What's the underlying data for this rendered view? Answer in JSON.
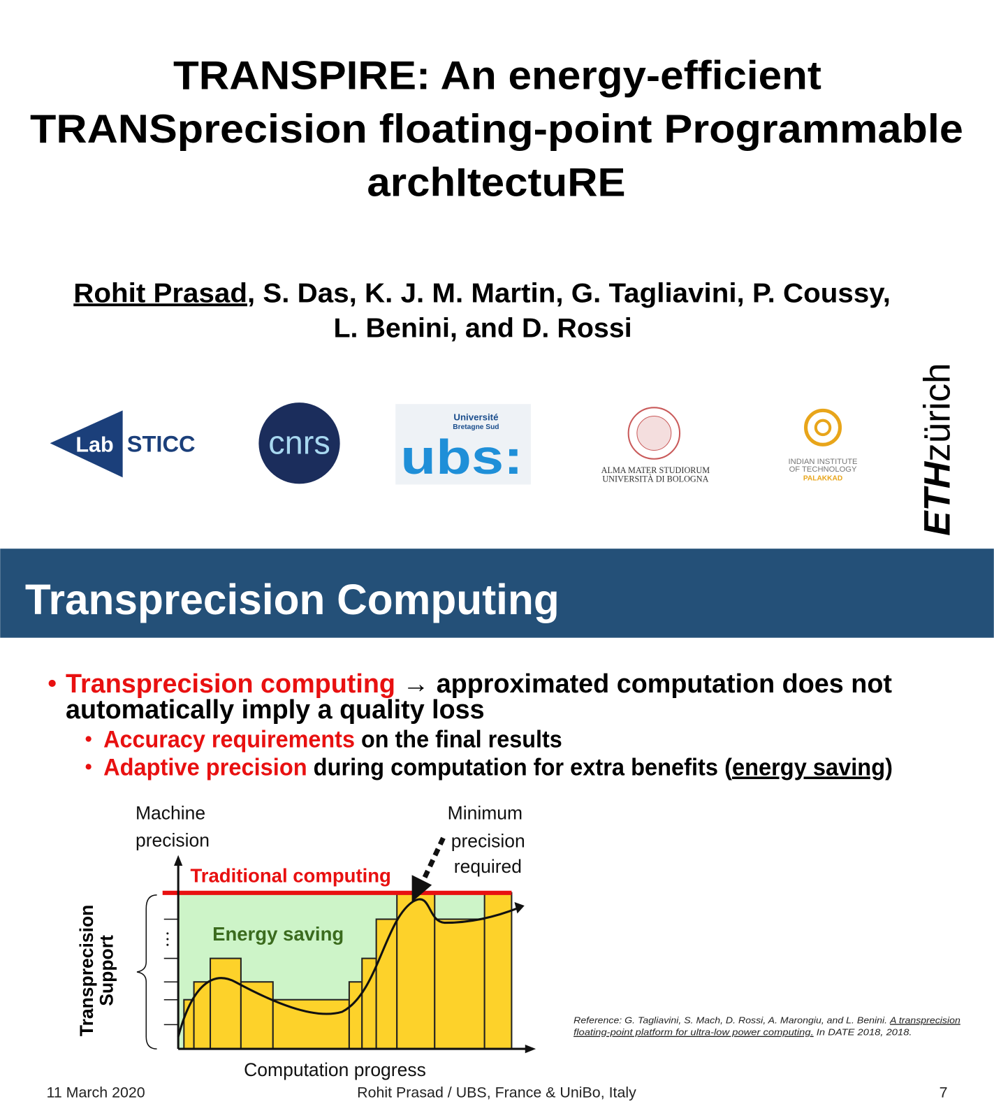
{
  "title": {
    "lines": [
      "TRANSPIRE: An energy-efficient",
      "TRANSprecision floating-point Programmable",
      "archItectuRE"
    ]
  },
  "authors": {
    "presenter": "Rohit Prasad",
    "line1_rest": ", S. Das, K. J. M. Martin, G. Tagliavini, P. Coussy,",
    "line2": "L. Benini, and D. Rossi"
  },
  "logos": {
    "lab_sticc": [
      "Lab",
      "STICC"
    ],
    "cnrs": "cnrs",
    "ubs": {
      "top": "Université",
      "sub": "Bretagne Sud",
      "name": "ubs:"
    },
    "bologna": [
      "ALMA MATER STUDIORUM",
      "UNIVERSITÀ DI BOLOGNA"
    ],
    "iit": [
      "INDIAN INSTITUTE",
      "OF TECHNOLOGY",
      "PALAKKAD"
    ],
    "eth": [
      "ETH",
      "zürich"
    ]
  },
  "section": {
    "heading": "Transprecision Computing"
  },
  "bullets": {
    "main": {
      "highlight": "Transprecision computing",
      "rest": " → approximated computation does not",
      "line2": "automatically imply a quality loss"
    },
    "sub": [
      {
        "highlight": "Accuracy requirements",
        "rest": " on the final results"
      },
      {
        "highlight": "Adaptive precision",
        "rest": " during computation for extra benefits (",
        "underlined": "energy saving",
        "end": ")"
      }
    ]
  },
  "diagram": {
    "y_label": [
      "Machine",
      "precision"
    ],
    "y_axis_title": [
      "Transprecision",
      "Support"
    ],
    "x_axis_title": "Computation progress",
    "traditional": "Traditional computing",
    "energy": "Energy saving",
    "minimum": [
      "Minimum",
      "precision",
      "required"
    ]
  },
  "reference": {
    "prefix": "Reference: G. Tagliavini, S. Mach, D. Rossi, A. Marongiu, and L. Benini. ",
    "link1": "A transprecision",
    "link2": "floating-point platform for ultra-low power computing.",
    "suffix": " In DATE 2018, 2018."
  },
  "footer": {
    "date": "11 March 2020",
    "center": "Rohit Prasad / UBS, France & UniBo, Italy",
    "page": "7"
  }
}
